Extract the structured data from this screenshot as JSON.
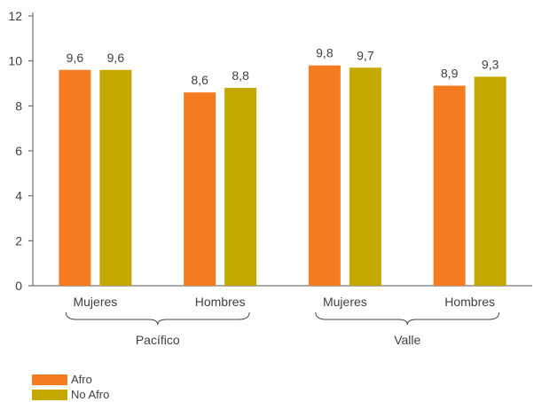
{
  "chart_data": {
    "type": "bar",
    "title": "",
    "xlabel": "",
    "ylabel": "",
    "ylim": [
      0,
      12
    ],
    "yticks": [
      0,
      2,
      4,
      6,
      8,
      10,
      12
    ],
    "groups": [
      {
        "label": "Pacífico",
        "categories": [
          "Mujeres",
          "Hombres"
        ]
      },
      {
        "label": "Valle",
        "categories": [
          "Mujeres",
          "Hombres"
        ]
      }
    ],
    "categories": [
      "Mujeres",
      "Hombres",
      "Mujeres",
      "Hombres"
    ],
    "series": [
      {
        "name": "Afro",
        "color": "#F47B20",
        "values": [
          9.6,
          8.6,
          9.8,
          8.9
        ],
        "labels": [
          "9,6",
          "8,6",
          "9,8",
          "8,9"
        ]
      },
      {
        "name": "No Afro",
        "color": "#C4A800",
        "values": [
          9.6,
          8.8,
          9.7,
          9.3
        ],
        "labels": [
          "9,6",
          "8,8",
          "9,7",
          "9,3"
        ]
      }
    ],
    "grid": false,
    "legend_position": "bottom-left"
  }
}
